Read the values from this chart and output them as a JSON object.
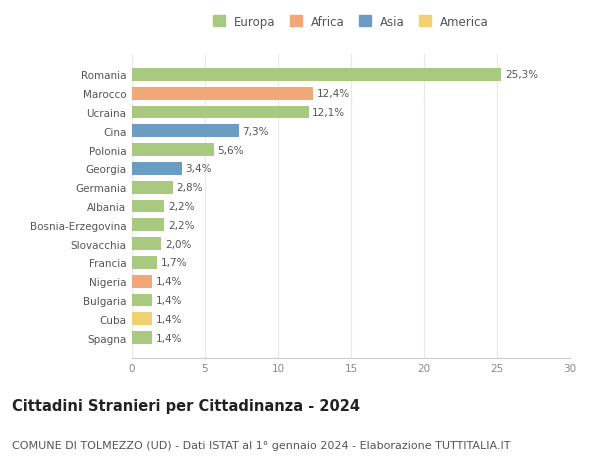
{
  "categories": [
    "Romania",
    "Marocco",
    "Ucraina",
    "Cina",
    "Polonia",
    "Georgia",
    "Germania",
    "Albania",
    "Bosnia-Erzegovina",
    "Slovacchia",
    "Francia",
    "Nigeria",
    "Bulgaria",
    "Cuba",
    "Spagna"
  ],
  "values": [
    25.3,
    12.4,
    12.1,
    7.3,
    5.6,
    3.4,
    2.8,
    2.2,
    2.2,
    2.0,
    1.7,
    1.4,
    1.4,
    1.4,
    1.4
  ],
  "labels": [
    "25,3%",
    "12,4%",
    "12,1%",
    "7,3%",
    "5,6%",
    "3,4%",
    "2,8%",
    "2,2%",
    "2,2%",
    "2,0%",
    "1,7%",
    "1,4%",
    "1,4%",
    "1,4%",
    "1,4%"
  ],
  "continents": [
    "Europa",
    "Africa",
    "Europa",
    "Asia",
    "Europa",
    "Asia",
    "Europa",
    "Europa",
    "Europa",
    "Europa",
    "Europa",
    "Africa",
    "Europa",
    "America",
    "Europa"
  ],
  "continent_colors": {
    "Europa": "#a8c97f",
    "Africa": "#f0a878",
    "Asia": "#6b9dc2",
    "America": "#f0d070"
  },
  "legend_order": [
    "Europa",
    "Africa",
    "Asia",
    "America"
  ],
  "title": "Cittadini Stranieri per Cittadinanza - 2024",
  "subtitle": "COMUNE DI TOLMEZZO (UD) - Dati ISTAT al 1° gennaio 2024 - Elaborazione TUTTITALIA.IT",
  "xlim": [
    0,
    30
  ],
  "xticks": [
    0,
    5,
    10,
    15,
    20,
    25,
    30
  ],
  "background_color": "#ffffff",
  "grid_color": "#e8e8e8",
  "bar_height": 0.68,
  "title_fontsize": 10.5,
  "subtitle_fontsize": 8,
  "label_fontsize": 7.5,
  "tick_fontsize": 7.5,
  "legend_fontsize": 8.5
}
